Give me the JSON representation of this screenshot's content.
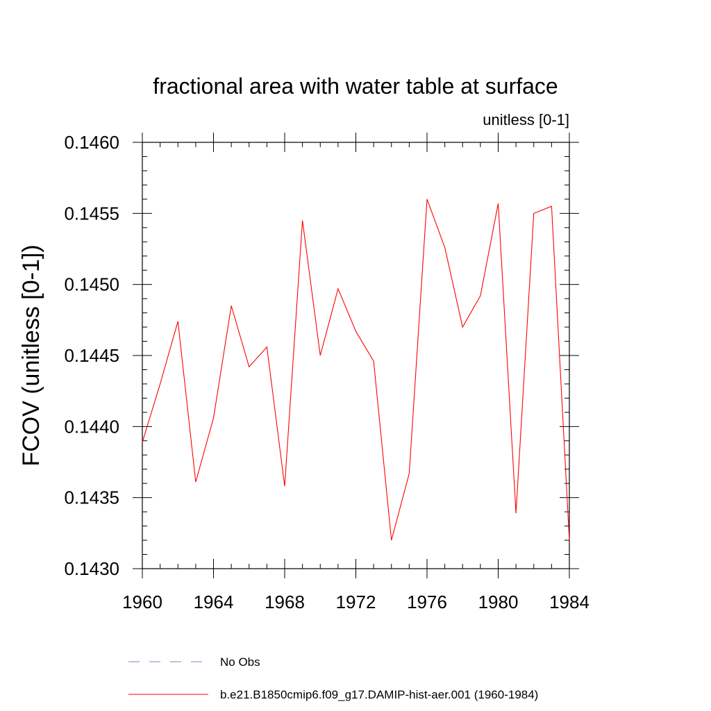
{
  "chart_data": {
    "type": "line",
    "title": "fractional area with water table at surface",
    "subtitle": "unitless [0-1]",
    "xlabel": "",
    "ylabel": "FCOV  (unitless [0-1])",
    "xlim": [
      1960,
      1984
    ],
    "ylim": [
      0.143,
      0.146
    ],
    "x_ticks": [
      1960,
      1964,
      1968,
      1972,
      1976,
      1980,
      1984
    ],
    "x_tick_labels": [
      "1960",
      "1964",
      "1968",
      "1972",
      "1976",
      "1980",
      "1984"
    ],
    "y_ticks": [
      0.143,
      0.1435,
      0.144,
      0.1445,
      0.145,
      0.1455,
      0.146
    ],
    "y_tick_labels": [
      "0.1430",
      "0.1435",
      "0.1440",
      "0.1445",
      "0.1450",
      "0.1455",
      "0.1460"
    ],
    "grid": false,
    "legend_position": "bottom",
    "series": [
      {
        "name": "b.e21.B1850cmip6.f09_g17.DAMIP-hist-aer.001 (1960-1984)",
        "color": "#ff0000",
        "style": "solid",
        "x": [
          1960,
          1961,
          1962,
          1963,
          1964,
          1965,
          1966,
          1967,
          1968,
          1969,
          1970,
          1971,
          1972,
          1973,
          1974,
          1975,
          1976,
          1977,
          1978,
          1979,
          1980,
          1981,
          1982,
          1983,
          1984
        ],
        "values": [
          0.14389,
          0.1443,
          0.14474,
          0.14361,
          0.14406,
          0.14485,
          0.14442,
          0.14456,
          0.14358,
          0.14545,
          0.1445,
          0.14497,
          0.14467,
          0.14446,
          0.1432,
          0.14367,
          0.1456,
          0.14526,
          0.1447,
          0.14492,
          0.14557,
          0.14339,
          0.1455,
          0.14555,
          0.1432
        ]
      }
    ],
    "legend": [
      {
        "label": "No Obs",
        "color": "#8080c0",
        "style": "dashed"
      },
      {
        "label": "b.e21.B1850cmip6.f09_g17.DAMIP-hist-aer.001 (1960-1984)",
        "color": "#ff0000",
        "style": "solid"
      }
    ]
  }
}
